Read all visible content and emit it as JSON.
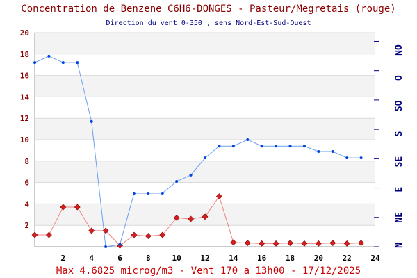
{
  "header": {
    "title": "Concentration de Benzene C6H6-DONGES - Pasteur/Megretais (rouge)",
    "subtitle": "Direction du vent 0-350 , sens Nord-Est-Sud-Ouest"
  },
  "footer": {
    "summary": "Max 4.6825 microg/m3 - Vent 170  a 13h00 - 17/12/2025"
  },
  "colors": {
    "benzene": "#cc0000",
    "benzene_marker": "#d42020",
    "benzene_line": "#f08080",
    "wind": "#0044dd",
    "wind_line": "#6aa0f0",
    "title": "#8b0000",
    "left_axis": "#8b0000",
    "right_axis": "#000080",
    "band": "#f3f3f3",
    "grid": "#d9d9d9"
  },
  "chart_data": {
    "type": "line",
    "x": [
      0,
      1,
      2,
      3,
      4,
      5,
      6,
      7,
      8,
      9,
      10,
      11,
      12,
      13,
      14,
      15,
      16,
      17,
      18,
      19,
      20,
      21,
      22,
      23
    ],
    "xlim": [
      0,
      24
    ],
    "x_ticks": [
      2,
      4,
      6,
      8,
      10,
      12,
      14,
      16,
      18,
      20,
      22,
      24
    ],
    "ylim": [
      0,
      20
    ],
    "y_ticks": [
      2,
      4,
      6,
      8,
      10,
      12,
      14,
      16,
      18,
      20
    ],
    "y2_ticks": [
      "N",
      "NE",
      "E",
      "SE",
      "S",
      "SO",
      "O",
      "NO"
    ],
    "y2_range_degrees": [
      0,
      350
    ],
    "grid": true,
    "series": [
      {
        "axis": "left",
        "marker": "diamond",
        "values": [
          1.1,
          1.1,
          3.7,
          3.7,
          1.5,
          1.5,
          0.1,
          1.1,
          1.0,
          1.1,
          2.7,
          2.6,
          2.8,
          4.7,
          0.4,
          0.35,
          0.3,
          0.3,
          0.35,
          0.3,
          0.3,
          0.35,
          0.3,
          0.35
        ]
      },
      {
        "axis": "right",
        "marker": "dot",
        "values": [
          17.2,
          17.8,
          17.2,
          17.2,
          11.7,
          0.0,
          0.2,
          5.0,
          5.0,
          5.0,
          6.1,
          6.7,
          8.3,
          9.4,
          9.4,
          10.0,
          9.4,
          9.4,
          9.4,
          9.4,
          8.9,
          8.9,
          8.3,
          8.3
        ]
      }
    ]
  }
}
